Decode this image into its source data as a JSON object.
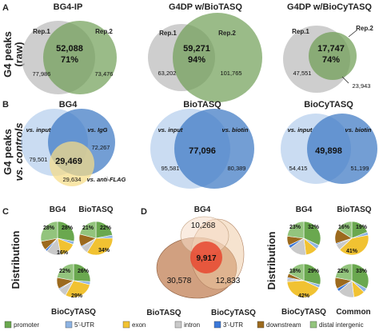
{
  "panel_a": {
    "letter": "A",
    "row_label": "G4 peaks",
    "row_sublabel": "(raw)",
    "venns": [
      {
        "title": "BG4-IP",
        "rep1": "Rep.1",
        "rep2": "Rep.2",
        "overlap": "52,088",
        "pct": "71%",
        "left_only": "77,986",
        "right_only": "73,476"
      },
      {
        "title": "G4DP w/BioTASQ",
        "rep1": "Rep.1",
        "rep2": "Rep.2",
        "overlap": "59,271",
        "pct": "94%",
        "left_only": "63,202",
        "right_only": "101,765"
      },
      {
        "title": "G4DP w/BioCyTASQ",
        "rep1": "Rep.1",
        "rep2": "Rep.2",
        "overlap": "17,747",
        "pct": "74%",
        "left_only": "47,551",
        "right_only": "23,943"
      }
    ]
  },
  "panel_b": {
    "letter": "B",
    "row_label": "G4 peaks",
    "row_sublabel": "vs. controls",
    "venns": [
      {
        "title": "BG4",
        "left": "vs. input",
        "right": "vs. IgG",
        "bottom": "vs. anti-FLAG",
        "overlap": "29,469",
        "left_only": "79,501",
        "right_only": "72,267",
        "bottom_only": "29,634"
      },
      {
        "title": "BioTASQ",
        "left": "vs. input",
        "right": "vs. biotin",
        "overlap": "77,096",
        "left_only": "95,581",
        "right_only": "80,389"
      },
      {
        "title": "BioCyTASQ",
        "left": "vs. input",
        "right": "vs. biotin",
        "overlap": "49,898",
        "left_only": "54,415",
        "right_only": "51,199"
      }
    ]
  },
  "panel_c": {
    "letter": "C",
    "row_label": "Distribution",
    "pies": [
      {
        "title": "BG4",
        "labels": [
          "28%",
          "28%",
          "16%"
        ]
      },
      {
        "title": "BioTASQ",
        "labels": [
          "21%",
          "22%",
          "34%"
        ]
      },
      {
        "title": "BioCyTASQ",
        "labels": [
          "22%",
          "26%",
          "29%"
        ]
      }
    ]
  },
  "panel_d": {
    "letter": "D",
    "venn": {
      "top": "BG4",
      "left": "BioTASQ",
      "right": "BioCyTASQ",
      "top_only": "10,268",
      "center": "9,917",
      "left_only": "30,578",
      "right_only": "12,833"
    },
    "row_label": "Distribution",
    "pies": [
      {
        "title": "BG4",
        "labels": [
          "23%",
          "32%"
        ]
      },
      {
        "title": "BioTASQ",
        "labels": [
          "16%",
          "19%",
          "41%"
        ]
      },
      {
        "title": "BioCyTASQ",
        "labels": [
          "18%",
          "29%",
          "42%"
        ]
      },
      {
        "title": "Common",
        "labels": [
          "22%",
          "33%"
        ]
      }
    ]
  },
  "legend": [
    {
      "label": "promoter",
      "color": "#6aa84f"
    },
    {
      "label": "5'-UTR",
      "color": "#8db3e2"
    },
    {
      "label": "exon",
      "color": "#f1c232"
    },
    {
      "label": "intron",
      "color": "#c9c9c9"
    },
    {
      "label": "3'-UTR",
      "color": "#3c78d8"
    },
    {
      "label": "downstream",
      "color": "#9c6a1e"
    },
    {
      "label": "distal intergenic",
      "color": "#93c47d"
    }
  ]
}
